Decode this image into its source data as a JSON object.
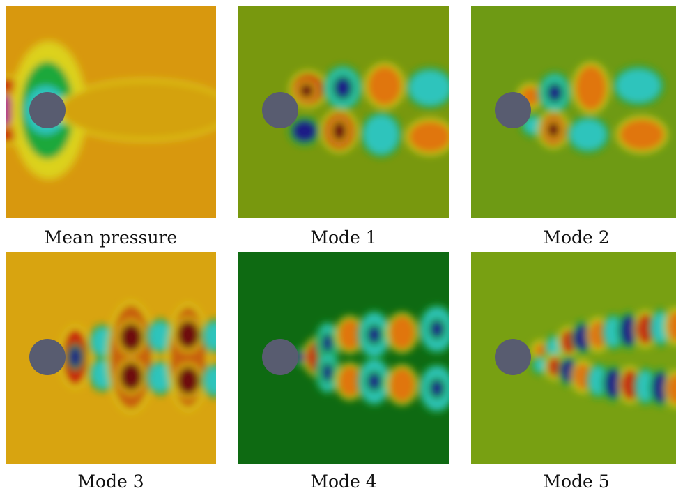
{
  "panels": [
    {
      "caption": "Mean pressure"
    },
    {
      "caption": "Mode 1"
    },
    {
      "caption": "Mode 2"
    },
    {
      "caption": "Mode 3"
    },
    {
      "caption": "Mode 4"
    },
    {
      "caption": "Mode 5"
    }
  ]
}
